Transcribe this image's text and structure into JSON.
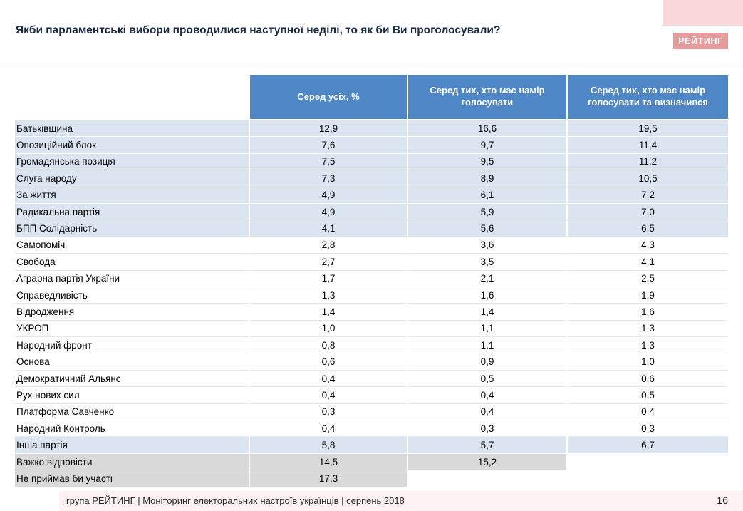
{
  "header": {
    "title": "Якби парламентські вибори проводилися наступної неділі, то як би Ви проголосували?",
    "logo_text": "РЕЙТИНГ"
  },
  "footer": {
    "text": "група РЕЙТИНГ |  Моніторинг електоральних настроїв українців | серпень  2018",
    "page_number": "16"
  },
  "colors": {
    "header_blue": "#4f86c6",
    "row_highlight": "#dbe5f1",
    "row_gray": "#d9d9d9",
    "badge_pink": "#e69c9c",
    "corner_pink": "#f8d8d8",
    "footer_pink": "#fdf1f1"
  },
  "chart_data": {
    "type": "table",
    "title": "Якби парламентські вибори проводилися наступної неділі, то як би Ви проголосували?",
    "columns": [
      "Серед усіх, %",
      "Серед тих, хто має намір голосувати",
      "Серед тих, хто має намір голосувати та визначився"
    ],
    "rows": [
      {
        "label": "Батьківщина",
        "values": [
          "12,9",
          "16,6",
          "19,5"
        ],
        "style": "highlight"
      },
      {
        "label": "Опозиційний блок",
        "values": [
          "7,6",
          "9,7",
          "11,4"
        ],
        "style": "highlight"
      },
      {
        "label": "Громадянська позиція",
        "values": [
          "7,5",
          "9,5",
          "11,2"
        ],
        "style": "highlight"
      },
      {
        "label": "Слуга народу",
        "values": [
          "7,3",
          "8,9",
          "10,5"
        ],
        "style": "highlight"
      },
      {
        "label": "За життя",
        "values": [
          "4,9",
          "6,1",
          "7,2"
        ],
        "style": "highlight"
      },
      {
        "label": "Радикальна партія",
        "values": [
          "4,9",
          "5,9",
          "7,0"
        ],
        "style": "highlight"
      },
      {
        "label": "БПП Солідарність",
        "values": [
          "4,1",
          "5,6",
          "6,5"
        ],
        "style": "highlight"
      },
      {
        "label": "Самопоміч",
        "values": [
          "2,8",
          "3,6",
          "4,3"
        ],
        "style": "plain"
      },
      {
        "label": "Свобода",
        "values": [
          "2,7",
          "3,5",
          "4,1"
        ],
        "style": "plain"
      },
      {
        "label": "Аграрна партія України",
        "values": [
          "1,7",
          "2,1",
          "2,5"
        ],
        "style": "plain"
      },
      {
        "label": "Справедливість",
        "values": [
          "1,3",
          "1,6",
          "1,9"
        ],
        "style": "plain"
      },
      {
        "label": "Відродження",
        "values": [
          "1,4",
          "1,4",
          "1,6"
        ],
        "style": "plain"
      },
      {
        "label": "УКРОП",
        "values": [
          "1,0",
          "1,1",
          "1,3"
        ],
        "style": "plain"
      },
      {
        "label": "Народний фронт",
        "values": [
          "0,8",
          "1,1",
          "1,3"
        ],
        "style": "plain"
      },
      {
        "label": "Основа",
        "values": [
          "0,6",
          "0,9",
          "1,0"
        ],
        "style": "plain"
      },
      {
        "label": "Демократичний Альянс",
        "values": [
          "0,4",
          "0,5",
          "0,6"
        ],
        "style": "plain"
      },
      {
        "label": "Рух нових сил",
        "values": [
          "0,4",
          "0,4",
          "0,5"
        ],
        "style": "plain"
      },
      {
        "label": "Платформа Савченко",
        "values": [
          "0,3",
          "0,4",
          "0,4"
        ],
        "style": "plain"
      },
      {
        "label": "Народний Контроль",
        "values": [
          "0,4",
          "0,3",
          "0,3"
        ],
        "style": "plain"
      },
      {
        "label": "Інша партія",
        "values": [
          "5,8",
          "5,7",
          "6,7"
        ],
        "style": "highlight"
      },
      {
        "label": "Важко відповісти",
        "values": [
          "14,5",
          "15,2",
          ""
        ],
        "style": "gray"
      },
      {
        "label": "Не приймав би участі",
        "values": [
          "17,3",
          "",
          ""
        ],
        "style": "gray"
      }
    ]
  }
}
